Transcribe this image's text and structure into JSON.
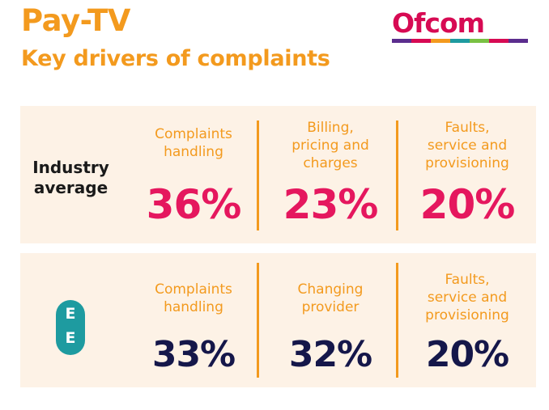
{
  "header": {
    "title": "Pay-TV",
    "subtitle": "Key drivers of complaints",
    "logo_text": "Ofcom",
    "logo_bar_colors": [
      "#5b2d8e",
      "#d70a53",
      "#f39a1e",
      "#1e9ba0",
      "#79c143",
      "#d70a53",
      "#5b2d8e"
    ]
  },
  "colors": {
    "accent": "#f39a1e",
    "industry_value": "#e5175e",
    "ee_value": "#15174a",
    "panel_bg": "#fdf2e6",
    "ee_brand": "#1e9ba0"
  },
  "chart_data": [
    {
      "type": "table",
      "title": "Industry average",
      "categories": [
        "Complaints handling",
        "Billing, pricing and charges",
        "Faults, service and provisioning"
      ],
      "values": [
        36,
        23,
        20
      ],
      "value_labels": [
        "36%",
        "23%",
        "20%"
      ],
      "label_lines": [
        "Complaints\nhandling",
        "Billing,\npricing and\ncharges",
        "Faults,\nservice and\nprovisioning"
      ]
    },
    {
      "type": "table",
      "title": "EE",
      "logo_letters": [
        "E",
        "E"
      ],
      "categories": [
        "Complaints handling",
        "Changing provider",
        "Faults, service and provisioning"
      ],
      "values": [
        33,
        32,
        20
      ],
      "value_labels": [
        "33%",
        "32%",
        "20%"
      ],
      "label_lines": [
        "Complaints\nhandling",
        "Changing\nprovider",
        "Faults,\nservice and\nprovisioning"
      ]
    }
  ],
  "industry_label": "Industry\naverage"
}
